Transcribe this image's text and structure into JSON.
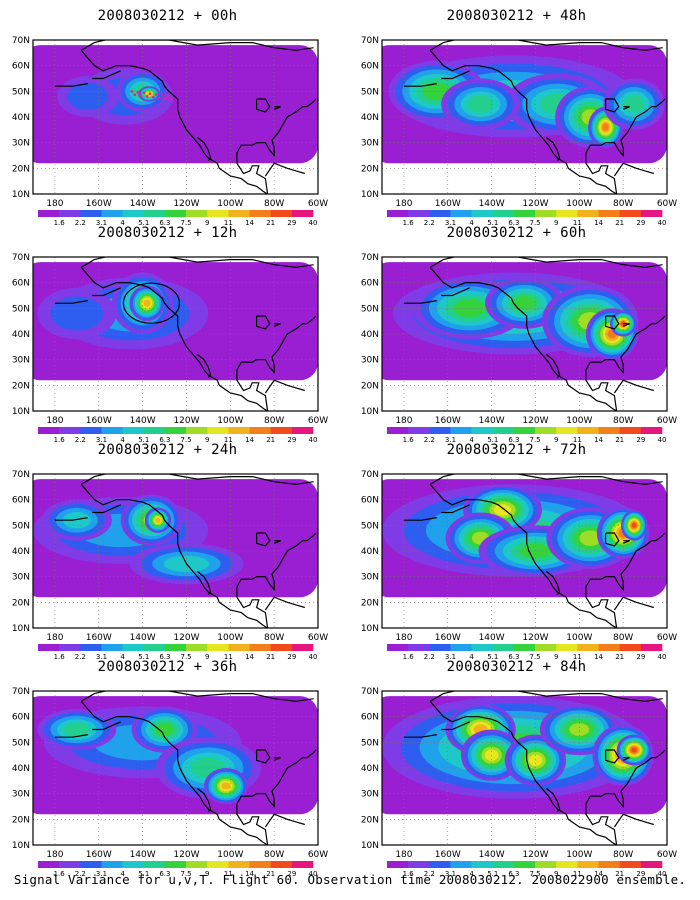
{
  "caption": "Signal Variance for u,v,T. Flight 60. Observation time 2008030212. 2008022900 ensemble.",
  "lat_labels": [
    "70N",
    "60N",
    "50N",
    "40N",
    "30N",
    "20N",
    "10N"
  ],
  "lon_labels": [
    "180",
    "160W",
    "140W",
    "120W",
    "100W",
    "80W",
    "60W"
  ],
  "colorbar": {
    "labels": [
      "1.6",
      "2.2",
      "3.1",
      "4",
      "5.1",
      "6.3",
      "7.5",
      "9",
      "11",
      "14",
      "21",
      "29",
      "40"
    ],
    "colors": [
      "#9a1ed2",
      "#7f3be6",
      "#2e5ef0",
      "#1fa1ec",
      "#1ec8c8",
      "#23cf8c",
      "#34d33c",
      "#9fdc26",
      "#e7e51f",
      "#f2b21b",
      "#f27f1a",
      "#f24a1c",
      "#e5177f"
    ]
  },
  "panels": [
    {
      "title": "2008030212 + 00h"
    },
    {
      "title": "2008030212 + 48h"
    },
    {
      "title": "2008030212 + 12h"
    },
    {
      "title": "2008030212 + 60h"
    },
    {
      "title": "2008030212 + 24h"
    },
    {
      "title": "2008030212 + 72h"
    },
    {
      "title": "2008030212 + 36h"
    },
    {
      "title": "2008030212 + 84h"
    }
  ]
}
